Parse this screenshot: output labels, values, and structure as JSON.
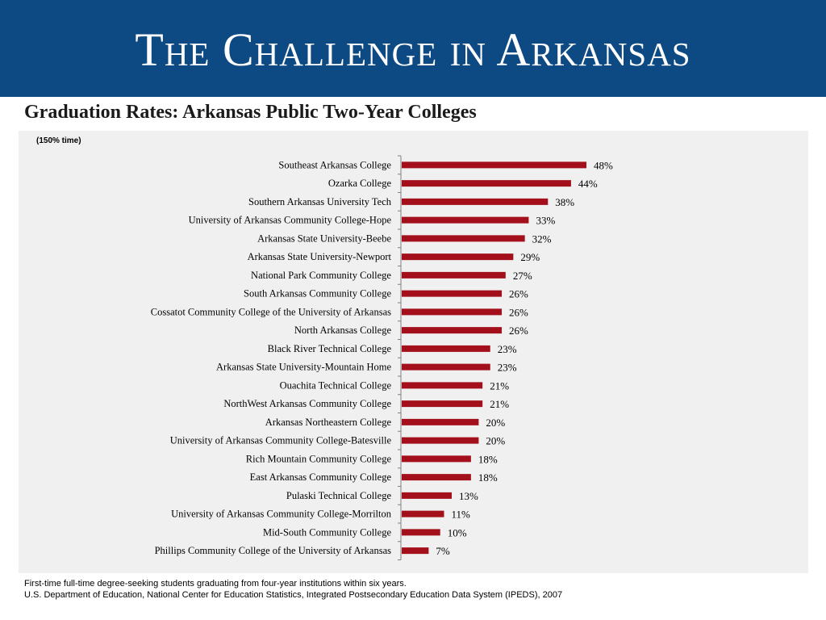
{
  "header": {
    "title": "The Challenge in Arkansas"
  },
  "subtitle": "Graduation Rates: Arkansas Public Two-Year Colleges",
  "chart_note": "(150% time)",
  "footer": {
    "line1": "First-time full-time degree-seeking students graduating from four-year institutions within six years.",
    "line2": "U.S. Department of Education, National Center for Education Statistics, Integrated Postsecondary Education Data System (IPEDS), 2007"
  },
  "colors": {
    "header_bg": "#0d4a83",
    "bar": "#a30f1a",
    "panel_bg": "#f0f0f0"
  },
  "chart_data": {
    "type": "bar",
    "orientation": "horizontal",
    "categories": [
      "Southeast Arkansas College",
      "Ozarka College",
      "Southern Arkansas University Tech",
      "University of Arkansas Community College-Hope",
      "Arkansas State University-Beebe",
      "Arkansas State University-Newport",
      "National Park Community College",
      "South Arkansas Community College",
      "Cossatot Community College of the University of Arkansas",
      "North Arkansas College",
      "Black River Technical College",
      "Arkansas State University-Mountain Home",
      "Ouachita Technical College",
      "NorthWest Arkansas Community College",
      "Arkansas Northeastern College",
      "University of Arkansas Community College-Batesville",
      "Rich Mountain Community College",
      "East Arkansas Community College",
      "Pulaski Technical College",
      "University of Arkansas Community College-Morrilton",
      "Mid-South Community College",
      "Phillips Community College of the University of Arkansas"
    ],
    "values": [
      48,
      44,
      38,
      33,
      32,
      29,
      27,
      26,
      26,
      26,
      23,
      23,
      21,
      21,
      20,
      20,
      18,
      18,
      13,
      11,
      10,
      7
    ],
    "value_labels": [
      "48%",
      "44%",
      "38%",
      "33%",
      "32%",
      "29%",
      "27%",
      "26%",
      "26%",
      "26%",
      "23%",
      "23%",
      "21%",
      "21%",
      "20%",
      "20%",
      "18%",
      "18%",
      "13%",
      "11%",
      "10%",
      "7%"
    ],
    "value_unit": "%",
    "xlim": [
      0,
      48
    ],
    "grid": false,
    "legend": "none"
  }
}
